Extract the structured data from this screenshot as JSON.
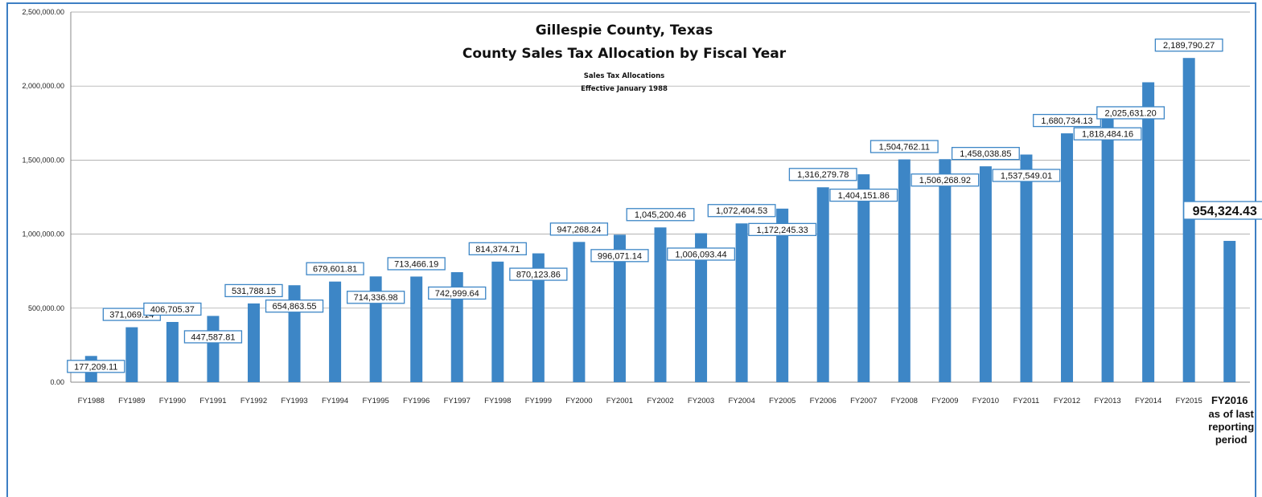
{
  "chart_data": {
    "type": "bar",
    "title": "Gillespie County, Texas",
    "title_line2": "County Sales Tax Allocation by Fiscal Year",
    "subtitle": "Sales Tax Allocations",
    "subtitle_line2": "Effective January 1988",
    "xlabel": "",
    "ylabel": "",
    "ylim": [
      0,
      2500000
    ],
    "yticks": [
      "0.00",
      "500,000.00",
      "1,000,000.00",
      "1,500,000.00",
      "2,000,000.00",
      "2,500,000.00"
    ],
    "ytick_values": [
      0,
      500000,
      1000000,
      1500000,
      2000000,
      2500000
    ],
    "grid": true,
    "bar_color": "#3d86c6",
    "categories": [
      "FY1988",
      "FY1989",
      "FY1990",
      "FY1991",
      "FY1992",
      "FY1993",
      "FY1994",
      "FY1995",
      "FY1996",
      "FY1997",
      "FY1998",
      "FY1999",
      "FY2000",
      "FY2001",
      "FY2002",
      "FY2003",
      "FY2004",
      "FY2005",
      "FY2006",
      "FY2007",
      "FY2008",
      "FY2009",
      "FY2010",
      "FY2011",
      "FY2012",
      "FY2013",
      "FY2014",
      "FY2015",
      "FY2016"
    ],
    "last_category_note": [
      "as of last",
      "reporting",
      "period"
    ],
    "values": [
      177209.11,
      371069.14,
      406705.37,
      447587.81,
      531788.15,
      654863.55,
      679601.81,
      714336.98,
      713466.19,
      742999.64,
      814374.71,
      870123.86,
      947268.24,
      996071.14,
      1045200.46,
      1006093.44,
      1072404.53,
      1172245.33,
      1316279.78,
      1404151.86,
      1504762.11,
      1506268.92,
      1458038.85,
      1537549.01,
      1680734.13,
      1818484.16,
      2025631.2,
      2189790.27,
      954324.43
    ],
    "data_labels": [
      "177,209.11",
      "371,069.14",
      "406,705.37",
      "447,587.81",
      "531,788.15",
      "654,863.55",
      "679,601.81",
      "714,336.98",
      "713,466.19",
      "742,999.64",
      "814,374.71",
      "870,123.86",
      "947,268.24",
      "996,071.14",
      "1,045,200.46",
      "1,006,093.44",
      "1,072,404.53",
      "1,172,245.33",
      "1,316,279.78",
      "1,404,151.86",
      "1,504,762.11",
      "1,506,268.92",
      "1,458,038.85",
      "1,537,549.01",
      "1,680,734.13",
      "1,818,484.16",
      "2,025,631.20",
      "2,189,790.27",
      "954,324.43"
    ]
  }
}
